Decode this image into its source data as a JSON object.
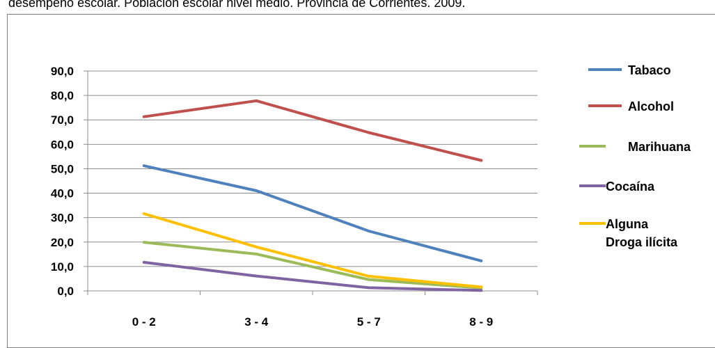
{
  "caption": "desempeño escolar. Población escolar nivel medio. Provincia de Corrientes. 2009.",
  "chart_data": {
    "type": "line",
    "categories": [
      "0 - 2",
      "3 - 4",
      "5 - 7",
      "8 - 9"
    ],
    "ylim": [
      0,
      90
    ],
    "yticks": [
      "0,0",
      "10,0",
      "20,0",
      "30,0",
      "40,0",
      "50,0",
      "60,0",
      "70,0",
      "80,0",
      "90,0"
    ],
    "grid": true,
    "legend_position": "right",
    "series": [
      {
        "name": "Tabaco",
        "color": "#4f81bd",
        "values": [
          51.2,
          41.0,
          24.5,
          12.3
        ]
      },
      {
        "name": "Alcohol",
        "color": "#c0504d",
        "values": [
          71.3,
          77.8,
          64.8,
          53.4
        ]
      },
      {
        "name": "Marihuana",
        "color": "#9bbb59",
        "values": [
          19.9,
          15.1,
          4.6,
          1.2
        ]
      },
      {
        "name": "Cocaína",
        "color": "#8064a2",
        "values": [
          11.7,
          6.1,
          1.3,
          0.2
        ]
      },
      {
        "name": "Alguna Droga ilícita",
        "legend_lines": [
          "Alguna",
          "Droga ilícita"
        ],
        "color": "#ffc000",
        "values": [
          31.6,
          18.0,
          6.0,
          1.6
        ]
      }
    ]
  }
}
